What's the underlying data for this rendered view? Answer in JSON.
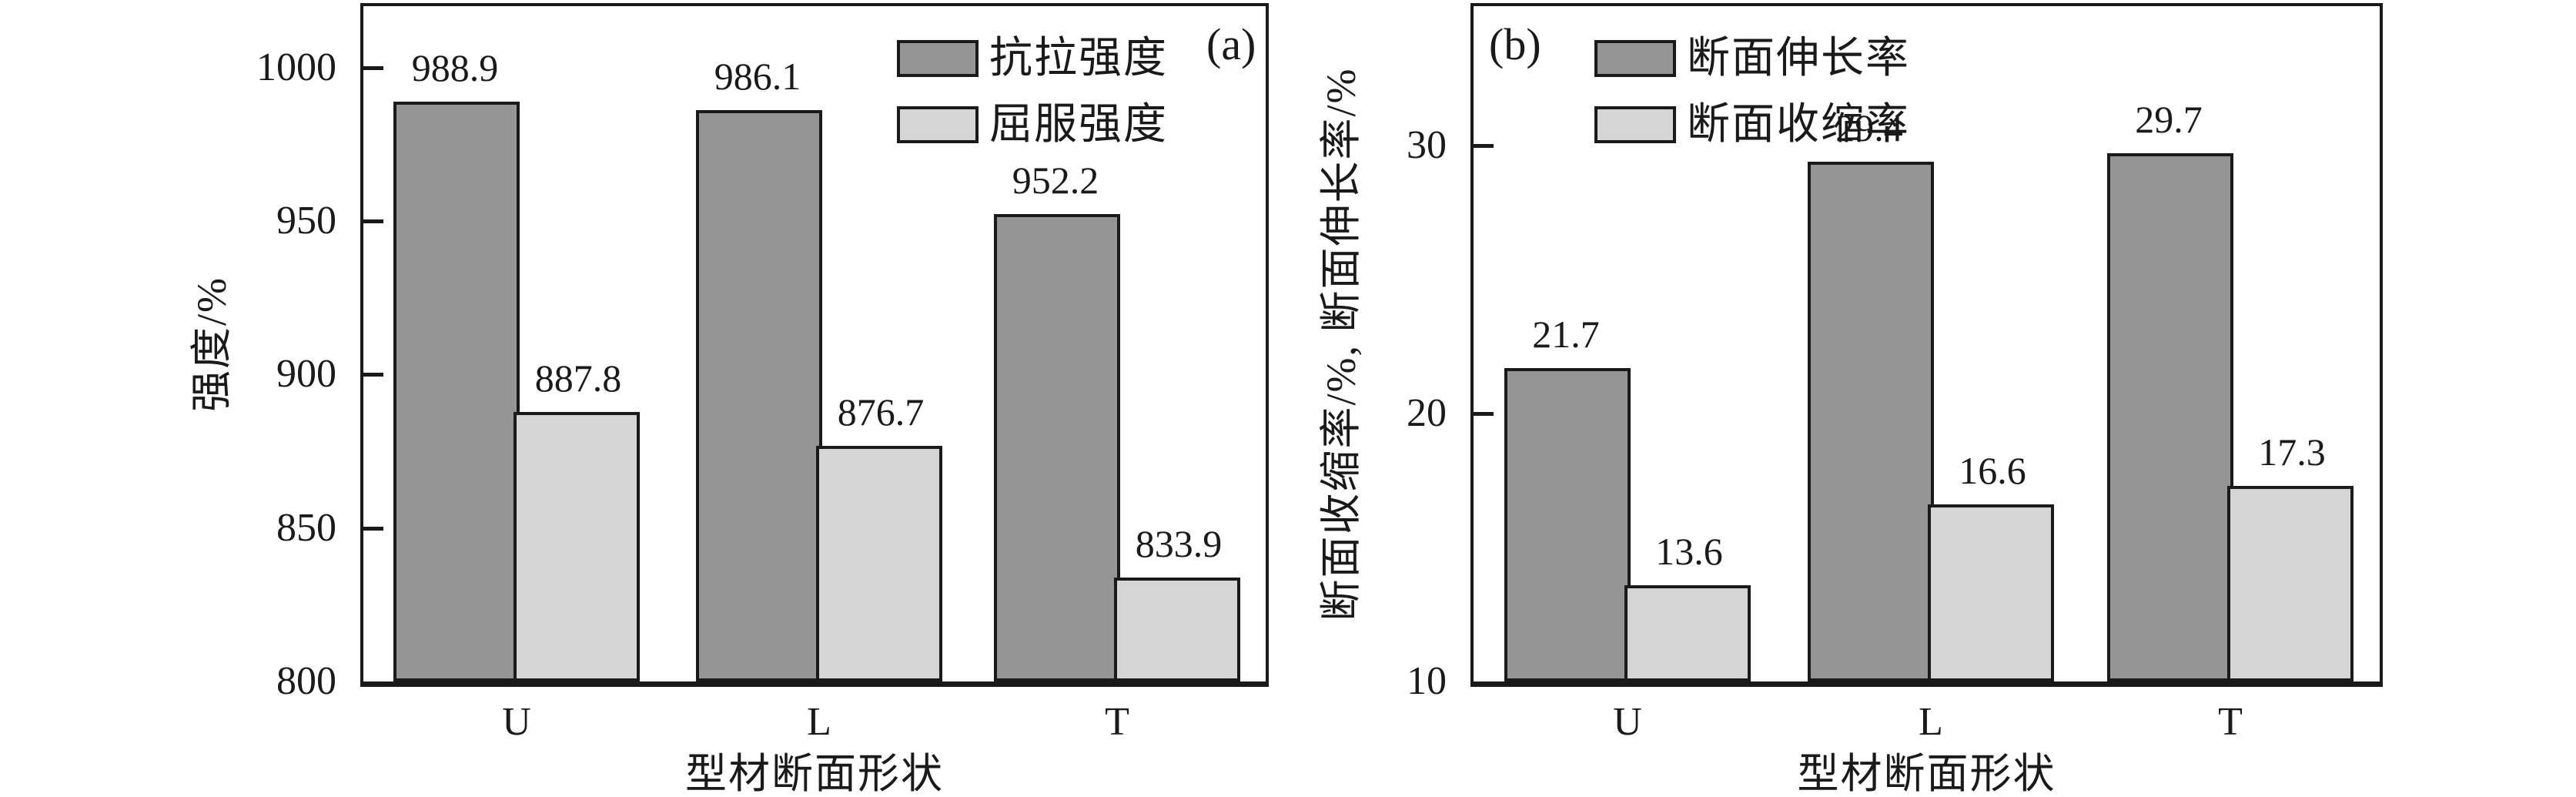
{
  "figure_title": "",
  "chart_data": [
    {
      "type": "bar",
      "panel_label": "(a)",
      "categories": [
        "U",
        "L",
        "T"
      ],
      "series": [
        {
          "name": "抗拉强度",
          "values": [
            988.9,
            986.1,
            952.2
          ]
        },
        {
          "name": "屈服强度",
          "values": [
            887.8,
            876.7,
            833.9
          ]
        }
      ],
      "value_labels": [
        [
          "988.9",
          "986.1",
          "952.2"
        ],
        [
          "887.8",
          "876.7",
          "833.9"
        ]
      ],
      "xlabel": "型材断面形状",
      "ylabel": "强度/%",
      "ylim": [
        800,
        1020
      ],
      "yticks": [
        800,
        850,
        900,
        950,
        1000
      ],
      "ytick_labels": [
        "800",
        "850",
        "900",
        "950",
        "1000"
      ],
      "bar_colors": [
        "#959595",
        "#d5d5d5"
      ],
      "bar_edge_color": "#1a1a1a",
      "grid": false,
      "legend_position": "top-center",
      "tag_position": "top-right"
    },
    {
      "type": "bar",
      "panel_label": "(b)",
      "categories": [
        "U",
        "L",
        "T"
      ],
      "series": [
        {
          "name": "断面伸长率",
          "values": [
            21.7,
            29.4,
            29.7
          ]
        },
        {
          "name": "断面收缩率",
          "values": [
            13.6,
            16.6,
            17.3
          ]
        }
      ],
      "value_labels": [
        [
          "21.7",
          "29.4",
          "29.7"
        ],
        [
          "13.6",
          "16.6",
          "17.3"
        ]
      ],
      "xlabel": "型材断面形状",
      "ylabel": "断面收缩率/%, 断面伸长率/%",
      "ylim": [
        10,
        35.2
      ],
      "yticks": [
        10,
        20,
        30
      ],
      "ytick_labels": [
        "10",
        "20",
        "30"
      ],
      "bar_colors": [
        "#959595",
        "#d5d5d5"
      ],
      "bar_edge_color": "#1a1a1a",
      "grid": false,
      "legend_position": "top-left",
      "tag_position": "top-left"
    }
  ]
}
